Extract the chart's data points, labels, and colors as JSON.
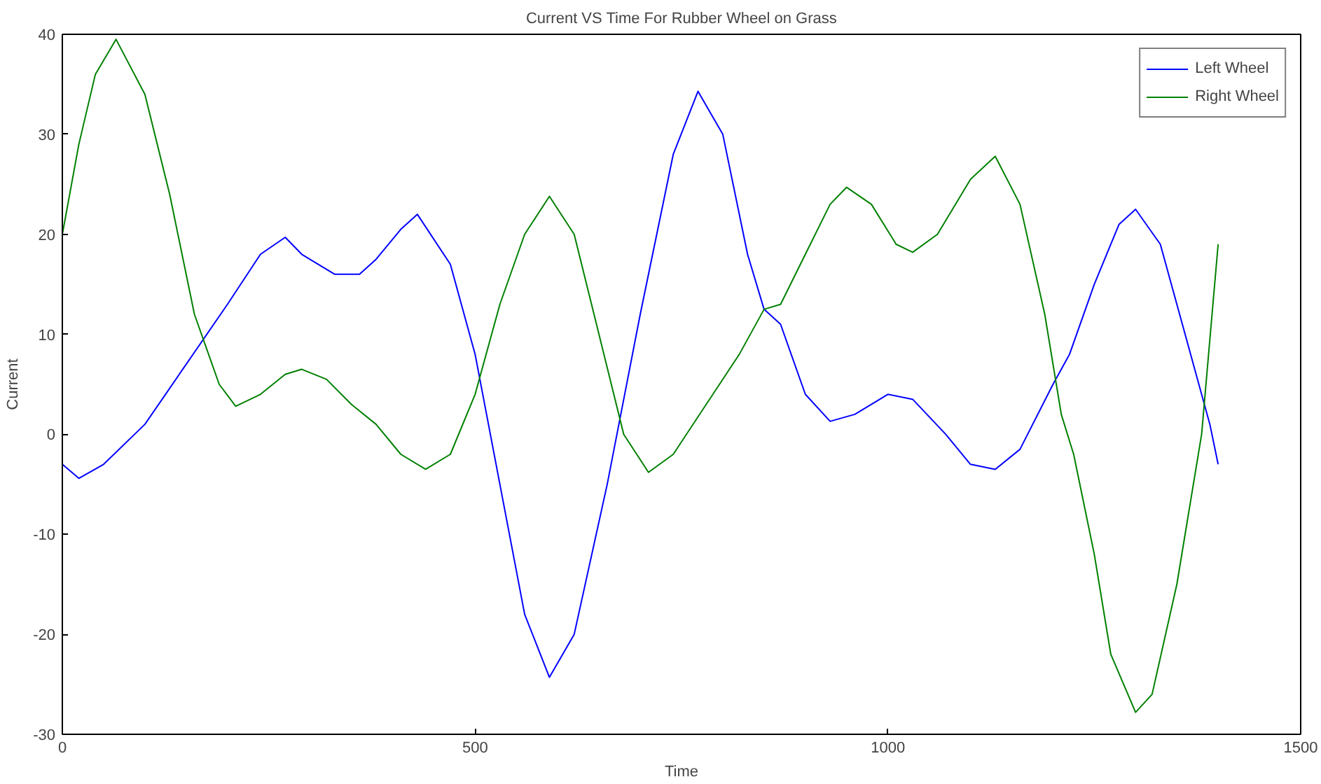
{
  "chart_data": {
    "type": "line",
    "title": "Current VS Time For Rubber Wheel on Grass",
    "xlabel": "Time",
    "ylabel": "Current",
    "xlim": [
      0,
      1500
    ],
    "ylim": [
      -30,
      40
    ],
    "xticks": [
      0,
      500,
      1000,
      1500
    ],
    "yticks": [
      -30,
      -20,
      -10,
      0,
      10,
      20,
      30,
      40
    ],
    "grid": false,
    "legend": "top right",
    "line_style": "solid",
    "marker": "none",
    "series": [
      {
        "name": "Left Wheel",
        "color": "#0000ff",
        "x": [
          0,
          20,
          50,
          100,
          150,
          200,
          240,
          270,
          290,
          330,
          360,
          380,
          410,
          430,
          470,
          500,
          530,
          560,
          590,
          620,
          660,
          700,
          740,
          770,
          800,
          830,
          850,
          870,
          900,
          930,
          960,
          1000,
          1030,
          1070,
          1100,
          1130,
          1160,
          1200,
          1220,
          1250,
          1280,
          1300,
          1330,
          1360,
          1390,
          1400
        ],
        "values": [
          -3,
          -4.4,
          -3,
          1,
          7,
          13,
          18,
          19.7,
          18,
          16,
          16,
          17.5,
          20.5,
          22,
          17,
          8,
          -5,
          -18,
          -24.3,
          -20,
          -5,
          12,
          28,
          34.3,
          30,
          18,
          12.5,
          11,
          4,
          1.3,
          2,
          4,
          3.5,
          0,
          -3,
          -3.5,
          -1.5,
          5,
          8,
          15,
          21,
          22.5,
          19,
          10,
          1,
          -3
        ]
      },
      {
        "name": "Right Wheel",
        "color": "#008000",
        "x": [
          0,
          20,
          40,
          65,
          100,
          130,
          160,
          190,
          210,
          240,
          270,
          290,
          320,
          350,
          380,
          410,
          440,
          470,
          500,
          530,
          560,
          590,
          620,
          650,
          680,
          710,
          740,
          780,
          820,
          850,
          870,
          900,
          930,
          950,
          980,
          1010,
          1030,
          1060,
          1100,
          1130,
          1160,
          1190,
          1210,
          1225,
          1250,
          1270,
          1300,
          1320,
          1350,
          1380,
          1400
        ],
        "values": [
          20,
          29,
          36,
          39.5,
          34,
          24,
          12,
          5,
          2.8,
          4,
          6,
          6.5,
          5.5,
          3,
          1,
          -2,
          -3.5,
          -2,
          4,
          13,
          20,
          23.8,
          20,
          10,
          0,
          -3.8,
          -2,
          3,
          8,
          12.5,
          13,
          18,
          23,
          24.7,
          23,
          19,
          18.2,
          20,
          25.5,
          27.8,
          23,
          12,
          2,
          -2,
          -12,
          -22,
          -27.8,
          -26,
          -15,
          0,
          19
        ]
      }
    ]
  }
}
